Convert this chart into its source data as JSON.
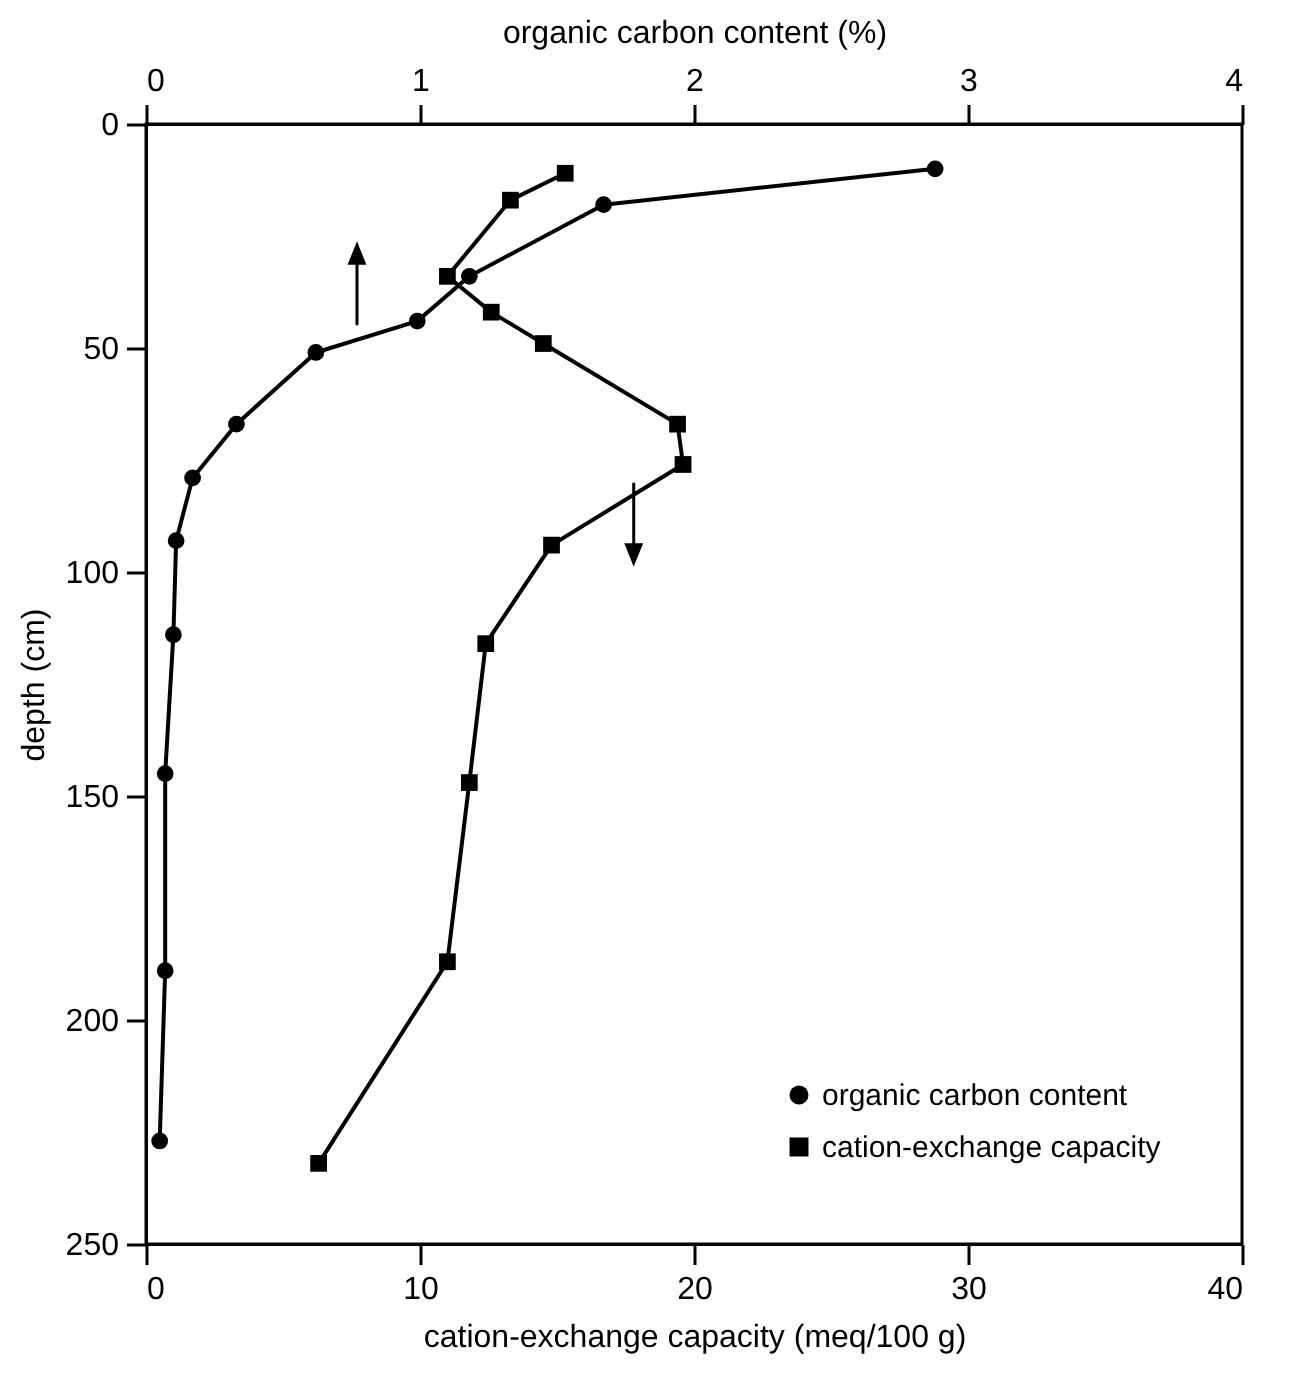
{
  "chart_data": {
    "type": "line",
    "xlabel": "cation-exchange capacity (meq/100 g)",
    "x2label": "organic carbon content (%)",
    "ylabel": "depth (cm)",
    "xlim": [
      0,
      40
    ],
    "xticks": [
      0,
      10,
      20,
      30,
      40
    ],
    "x2lim": [
      0,
      4
    ],
    "x2ticks": [
      0,
      1,
      2,
      3,
      4
    ],
    "ylim": [
      250,
      0
    ],
    "yticks": [
      0,
      50,
      100,
      150,
      200,
      250
    ],
    "grid": false,
    "legend": "bottom right",
    "series": [
      {
        "name": "organic carbon content",
        "color": "#000000",
        "marker": "circle",
        "axis": "x2",
        "x": [
          2.88,
          1.67,
          1.18,
          0.99,
          0.62,
          0.33,
          0.17,
          0.11,
          0.1,
          0.07,
          0.07,
          0.05
        ],
        "values": [
          10,
          18,
          34,
          44,
          51,
          67,
          79,
          93,
          114,
          145,
          189,
          227
        ]
      },
      {
        "name": "cation-exchange capacity",
        "color": "#000000",
        "marker": "square",
        "x": [
          15.3,
          13.3,
          11,
          12.6,
          14.5,
          19.4,
          19.6,
          14.8,
          12.4,
          11.8,
          11,
          6.3
        ],
        "values": [
          11,
          17,
          34,
          42,
          49,
          67,
          76,
          94,
          116,
          147,
          187,
          232
        ]
      }
    ]
  }
}
